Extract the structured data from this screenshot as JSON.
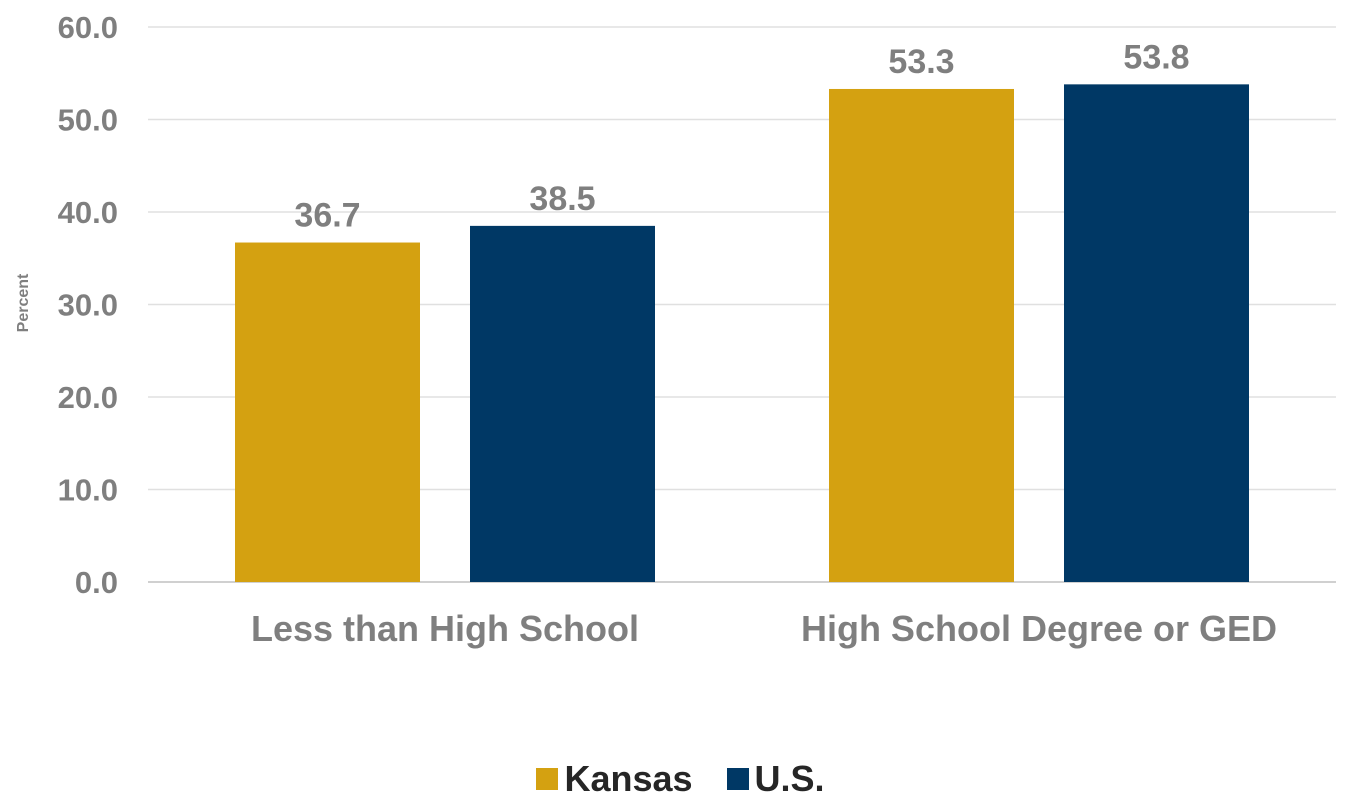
{
  "chart_data": {
    "type": "bar",
    "title": "",
    "xlabel": "",
    "ylabel": "Percent",
    "ylim": [
      0,
      60
    ],
    "yticks": [
      "0.0",
      "10.0",
      "20.0",
      "30.0",
      "40.0",
      "50.0",
      "60.0"
    ],
    "categories": [
      "Less than High School",
      "High School Degree or GED"
    ],
    "series": [
      {
        "name": "Kansas",
        "color": "#D4A111",
        "values": [
          36.7,
          53.3
        ],
        "labels": [
          "36.7",
          "53.3"
        ]
      },
      {
        "name": "U.S.",
        "color": "#003865",
        "values": [
          38.5,
          53.8
        ],
        "labels": [
          "38.5",
          "53.8"
        ]
      }
    ],
    "grid": true,
    "legend_position": "bottom"
  }
}
